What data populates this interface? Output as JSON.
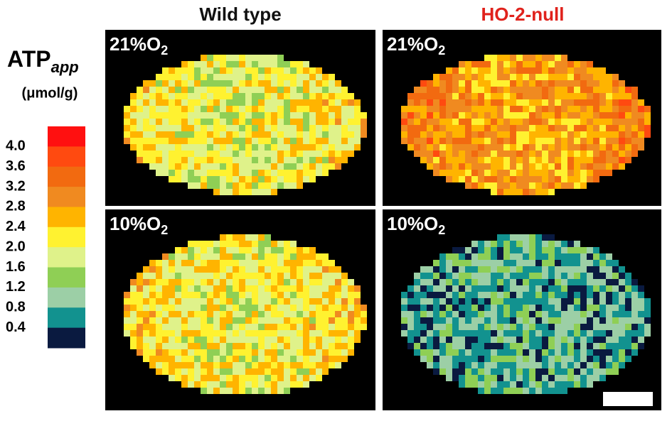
{
  "figure": {
    "columns": [
      {
        "title": "Wild type",
        "color": "#111111"
      },
      {
        "title": "HO-2-null",
        "color": "#e0221c"
      }
    ],
    "panels": [
      {
        "label": "21%O",
        "label_sub": "2"
      },
      {
        "label": "21%O",
        "label_sub": "2"
      },
      {
        "label": "10%O",
        "label_sub": "2"
      },
      {
        "label": "10%O",
        "label_sub": "2"
      }
    ],
    "legend": {
      "title": "ATP",
      "title_sub": "app",
      "unit": "(μmol/g)",
      "labels": [
        "4.0",
        "3.6",
        "3.2",
        "2.8",
        "2.4",
        "2.0",
        "1.6",
        "1.2",
        "0.8",
        "0.4"
      ],
      "colors": [
        "#ff1010",
        "#ff4a10",
        "#f26a10",
        "#f08a20",
        "#ffb400",
        "#fff230",
        "#dff28a",
        "#8fcf55",
        "#9ccfa6",
        "#12928f",
        "#0a1a40"
      ]
    }
  }
}
